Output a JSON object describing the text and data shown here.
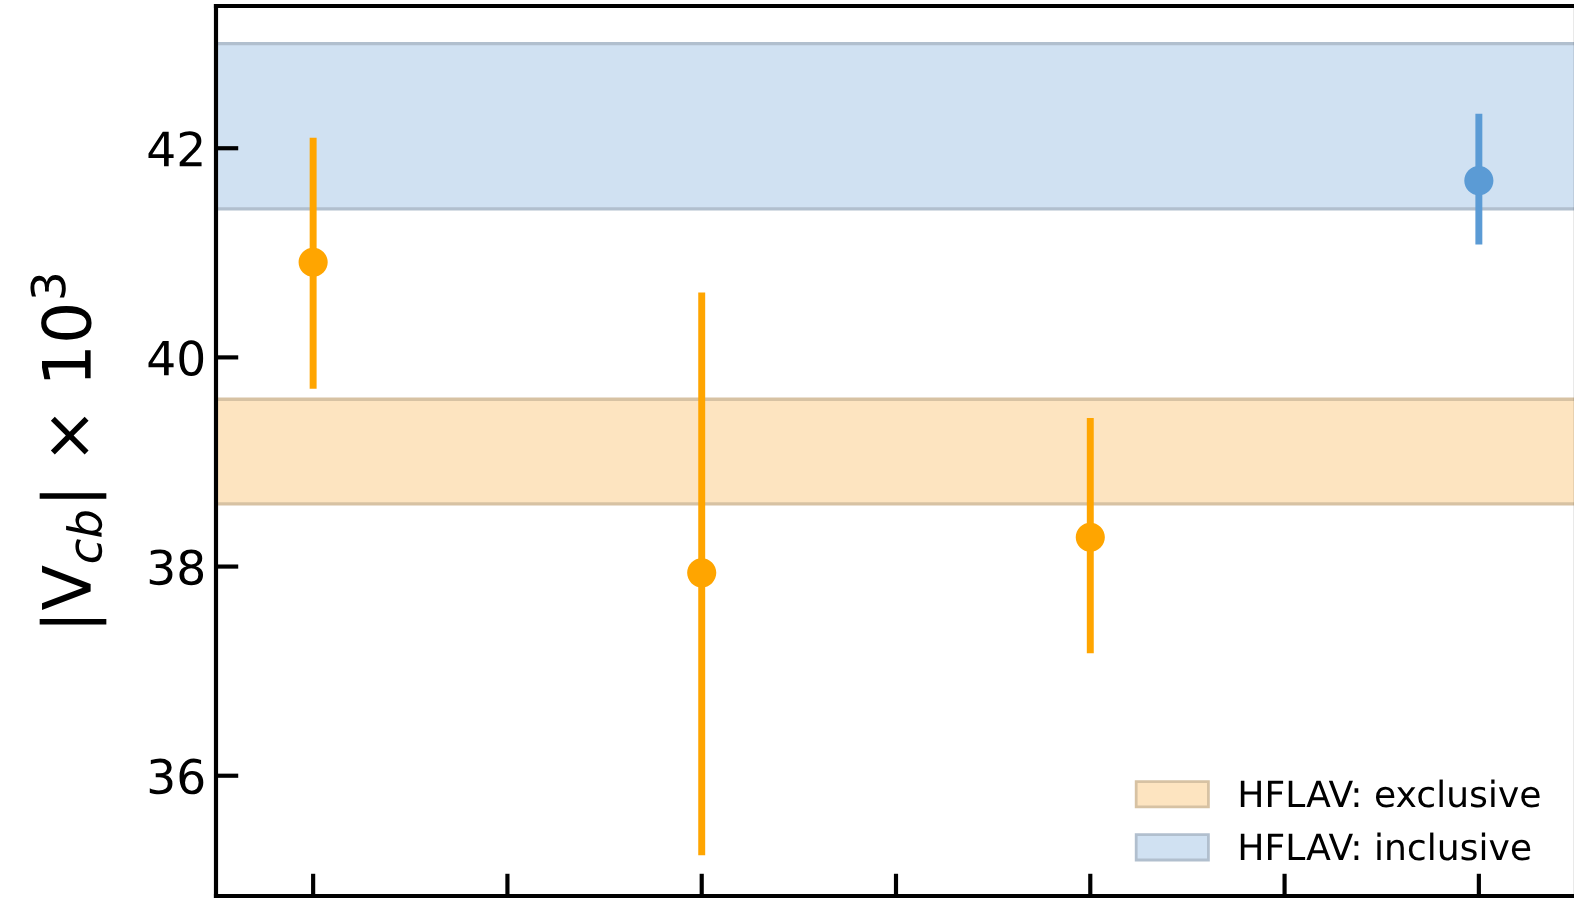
{
  "chart_data": {
    "type": "scatter",
    "ylabel": "|V$_{cb}$| × 10$^{3}$",
    "categories": [
      null,
      null,
      null,
      null,
      null,
      null,
      null
    ],
    "ylim": [
      34.85,
      43.36
    ],
    "yticks": [
      36,
      38,
      40,
      42
    ],
    "grid": false,
    "marker": "circle",
    "legend": "bottom right",
    "series": [
      {
        "color": "#ffa500",
        "values": [
          40.91,
          null,
          37.94,
          null,
          38.28,
          null,
          null
        ],
        "errors": [
          [
            39.7,
            42.1
          ],
          null,
          [
            35.24,
            40.62
          ],
          null,
          [
            37.17,
            39.42
          ],
          null,
          null
        ]
      },
      {
        "color": "#5b9bd5",
        "values": [
          null,
          null,
          null,
          null,
          null,
          null,
          41.69
        ],
        "errors": [
          null,
          null,
          null,
          null,
          null,
          null,
          [
            41.08,
            42.33
          ]
        ]
      }
    ],
    "bands": [
      {
        "axis": "y",
        "from": 38.6,
        "to": 39.6,
        "label": "HFLAV: exclusive",
        "color": "#fde4c0"
      },
      {
        "axis": "y",
        "from": 41.42,
        "to": 43.0,
        "label": "HFLAV: inclusive",
        "color": "#d0e1f2"
      }
    ]
  }
}
